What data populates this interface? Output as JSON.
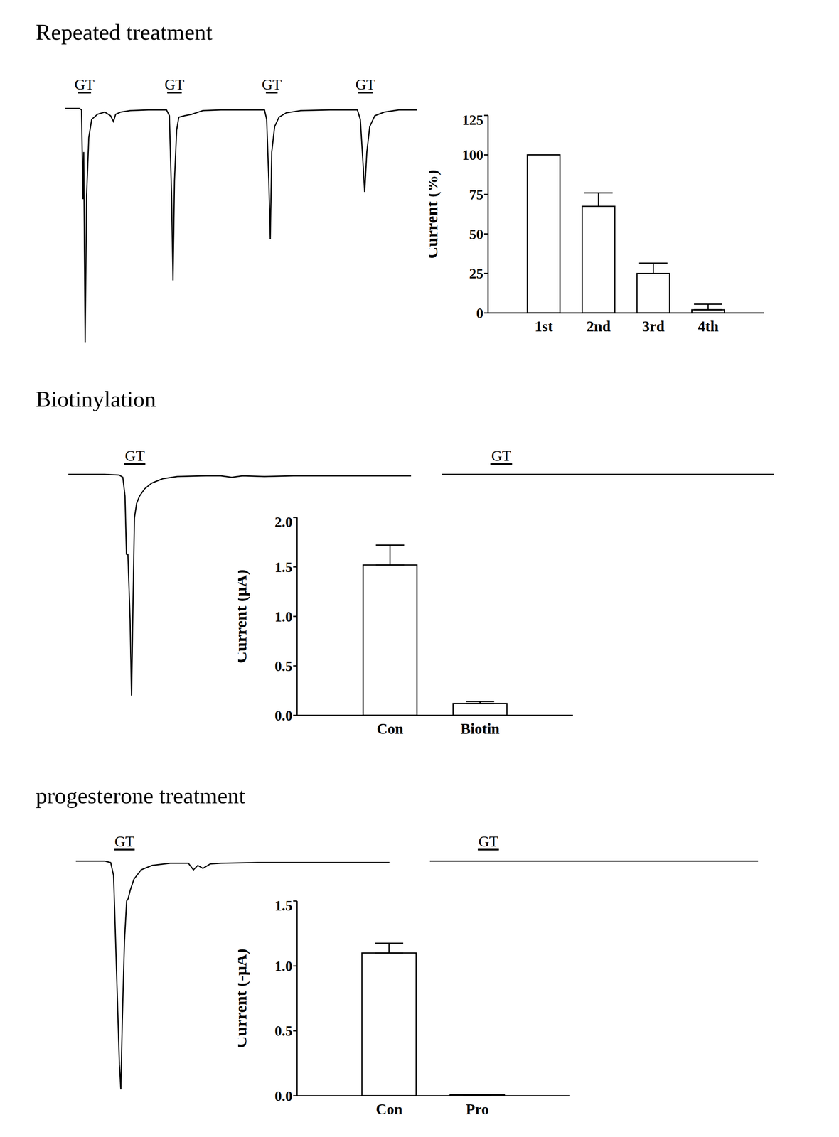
{
  "chart_data": [
    {
      "type": "line",
      "title": "Repeated treatment",
      "tick_labels": false,
      "color": "#000000",
      "x": [
        85,
        105,
        108,
        110,
        111,
        113,
        115,
        118,
        122,
        130,
        140,
        148,
        152,
        155,
        162,
        175,
        200,
        225,
        229,
        232,
        234,
        236,
        239,
        242,
        250,
        260,
        275,
        300,
        360,
        363,
        366,
        368,
        370,
        374,
        380,
        390,
        410,
        450,
        488,
        492,
        496,
        498,
        501,
        505,
        512,
        525,
        545,
        570
      ],
      "values": [
        0,
        0,
        -2,
        -125,
        -60,
        -322,
        -120,
        -40,
        -15,
        -8,
        -5,
        -10,
        -18,
        -8,
        -5,
        -3,
        -2,
        -2,
        -10,
        -120,
        -237,
        -100,
        -30,
        -12,
        -10,
        -8,
        -3,
        -2,
        -2,
        -15,
        -100,
        -180,
        -60,
        -25,
        -12,
        -6,
        -3,
        -2,
        -2,
        -15,
        -80,
        -115,
        -60,
        -25,
        -10,
        -5,
        -2,
        -2
      ],
      "xlim": [
        85,
        570
      ],
      "ylim": [
        -325,
        5
      ],
      "annotations": [
        {
          "text": "GT",
          "x": [
            103,
            121
          ]
        },
        {
          "text": "GT",
          "x": [
            226,
            246
          ]
        },
        {
          "text": "GT",
          "x": [
            362,
            378
          ]
        },
        {
          "text": "GT",
          "x": [
            489,
            509
          ]
        }
      ]
    },
    {
      "type": "bar",
      "categories": [
        "1st",
        "2nd",
        "3rd",
        "4th"
      ],
      "values": [
        100,
        67.5,
        25,
        2
      ],
      "errors": [
        0,
        8.5,
        6.5,
        3.5
      ],
      "ylabel": "Current (%)",
      "ylim": [
        0,
        125
      ],
      "yticks": [
        0,
        25,
        50,
        75,
        100,
        125
      ],
      "color": "#ffffff"
    },
    {
      "type": "line",
      "title": "Biotinylation",
      "tick_labels": false,
      "color": "#000000",
      "x": [
        90,
        140,
        160,
        165,
        168,
        170,
        172,
        175,
        177,
        179,
        181,
        184,
        188,
        195,
        205,
        220,
        240,
        280,
        300,
        315,
        330,
        360,
        400,
        562
      ],
      "values": [
        0,
        0,
        -1,
        -4,
        -30,
        -110,
        -110,
        -200,
        -305,
        -180,
        -60,
        -40,
        -30,
        -20,
        -12,
        -6,
        -3,
        -2,
        -2,
        -4,
        -2,
        -3,
        -2,
        -2
      ],
      "xlim": [
        90,
        562
      ],
      "ylim": [
        -310,
        5
      ],
      "annotations": [
        {
          "text": "GT",
          "x": [
            167,
            196
          ]
        }
      ]
    },
    {
      "type": "line",
      "tick_labels": false,
      "color": "#000000",
      "x": [
        604,
        700,
        800,
        900,
        1000,
        1062
      ],
      "values": [
        0,
        0,
        0,
        0,
        0,
        0
      ],
      "xlim": [
        604,
        1062
      ],
      "ylim": [
        -310,
        5
      ],
      "annotations": [
        {
          "text": "GT",
          "x": [
            671,
            701
          ]
        }
      ]
    },
    {
      "type": "bar",
      "categories": [
        "Con",
        "Biotin"
      ],
      "values": [
        1.52,
        0.12
      ],
      "errors": [
        0.2,
        0.02
      ],
      "ylabel": "Current (μA)",
      "ylim": [
        0,
        2
      ],
      "yticks": [
        {
          "value": 0,
          "label": "0.0"
        },
        {
          "value": 0.5,
          "label": "0.5"
        },
        {
          "value": 1,
          "label": "1.0"
        },
        {
          "value": 1.5,
          "label": "1.5"
        },
        {
          "value": 2,
          "label": "2.0"
        }
      ],
      "color": "#ffffff"
    },
    {
      "type": "line",
      "title": "progesterone treatment",
      "tick_labels": false,
      "color": "#000000",
      "x": [
        100,
        140,
        148,
        152,
        156,
        160,
        162,
        164,
        167,
        170,
        172,
        175,
        180,
        190,
        205,
        230,
        255,
        262,
        268,
        275,
        285,
        300,
        350,
        532
      ],
      "values": [
        0,
        0,
        -2,
        -20,
        -150,
        -280,
        -315,
        -220,
        -110,
        -55,
        -52,
        -40,
        -25,
        -12,
        -6,
        -3,
        -3,
        -12,
        -6,
        -10,
        -4,
        -3,
        -2,
        -2
      ],
      "xlim": [
        100,
        532
      ],
      "ylim": [
        -320,
        5
      ],
      "annotations": [
        {
          "text": "GT",
          "x": [
            153,
            181
          ]
        }
      ]
    },
    {
      "type": "line",
      "tick_labels": false,
      "color": "#000000",
      "x": [
        588,
        700,
        800,
        1040
      ],
      "values": [
        0,
        0,
        0,
        0
      ],
      "xlim": [
        588,
        1040
      ],
      "ylim": [
        -320,
        5
      ],
      "annotations": [
        {
          "text": "GT",
          "x": [
            654,
            683
          ]
        }
      ]
    },
    {
      "type": "bar",
      "categories": [
        "Con",
        "Pro"
      ],
      "values": [
        1.1,
        0.01
      ],
      "errors": [
        0.075,
        0
      ],
      "ylabel": "Current (-μA)",
      "ylim": [
        0,
        1.5
      ],
      "yticks": [
        {
          "value": 0,
          "label": "0.0"
        },
        {
          "value": 0.5,
          "label": "0.5"
        },
        {
          "value": 1,
          "label": "1.0"
        },
        {
          "value": 1.5,
          "label": "1.5"
        }
      ],
      "color": "#ffffff"
    }
  ]
}
